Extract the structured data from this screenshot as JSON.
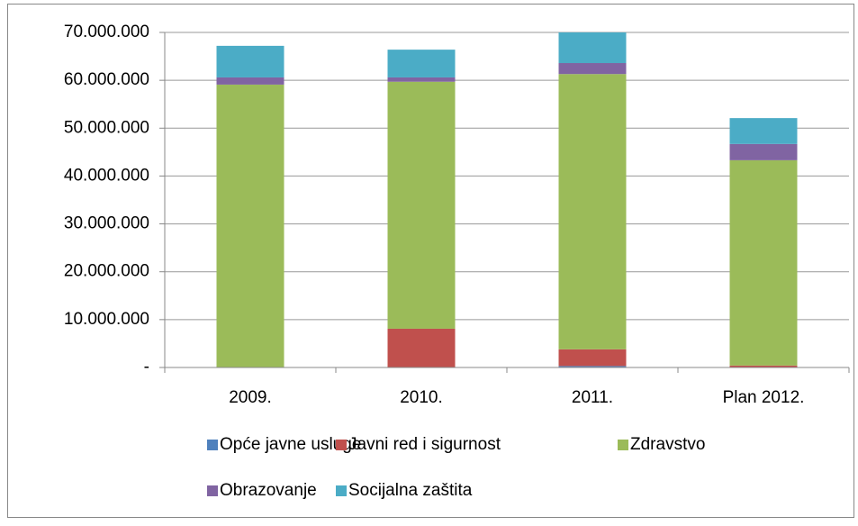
{
  "chart_data": {
    "type": "stacked_bar",
    "categories": [
      "2009.",
      "2010.",
      "2011.",
      "Plan 2012."
    ],
    "series": [
      {
        "name": "Opće javne usluge",
        "color": "#4f81bd",
        "values": [
          0,
          0,
          300000.0,
          0
        ]
      },
      {
        "name": "Javni red i sigurnost",
        "color": "#c0504d",
        "values": [
          0,
          8100000.0,
          3500000.0,
          400000.0
        ]
      },
      {
        "name": "Zdravstvo",
        "color": "#9bbb59",
        "values": [
          59100000.0,
          51600000.0,
          57500000.0,
          42900000.0
        ]
      },
      {
        "name": "Obrazovanje",
        "color": "#8064a2",
        "values": [
          1500000.0,
          900000.0,
          2300000.0,
          3400000.0
        ]
      },
      {
        "name": "Socijalna zaštita",
        "color": "#4bacc6",
        "values": [
          6600000.0,
          5800000.0,
          6400000.0,
          5400000.0
        ]
      }
    ],
    "ylim": [
      0,
      70000000
    ],
    "yticks": [
      {
        "value": 0,
        "label": "-"
      },
      {
        "value": 10000000,
        "label": "10.000.000"
      },
      {
        "value": 20000000,
        "label": "20.000.000"
      },
      {
        "value": 30000000,
        "label": "30.000.000"
      },
      {
        "value": 40000000,
        "label": "40.000.000"
      },
      {
        "value": 50000000,
        "label": "50.000.000"
      },
      {
        "value": 60000000,
        "label": "60.000.000"
      },
      {
        "value": 70000000,
        "label": "70.000.000"
      }
    ],
    "grid": true
  }
}
